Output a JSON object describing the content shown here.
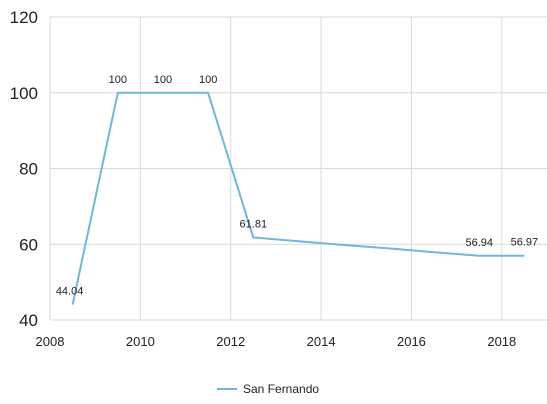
{
  "chart_data": {
    "type": "line",
    "title": "",
    "xlabel": "",
    "ylabel": "",
    "xlim": [
      2008,
      2019
    ],
    "ylim": [
      40,
      120
    ],
    "x_ticks": [
      "2008",
      "2010",
      "2012",
      "2014",
      "2016",
      "2018"
    ],
    "y_ticks": [
      "40",
      "60",
      "80",
      "100",
      "120"
    ],
    "grid": true,
    "legend_position": "bottom",
    "series": [
      {
        "name": "San Fernando",
        "color": "#6fb7dc",
        "points": [
          {
            "x": 2008.5,
            "y": 44.04,
            "label": "44.04"
          },
          {
            "x": 2009.5,
            "y": 100,
            "label": "100"
          },
          {
            "x": 2010.5,
            "y": 100,
            "label": "100"
          },
          {
            "x": 2011.5,
            "y": 100,
            "label": "100"
          },
          {
            "x": 2012.5,
            "y": 61.81,
            "label": "61.81"
          },
          {
            "x": 2017.5,
            "y": 56.94,
            "label": "56.94"
          },
          {
            "x": 2018.5,
            "y": 56.97,
            "label": "56.97"
          }
        ],
        "unlabeled_points": [
          {
            "x": 2013.5,
            "y": 60.8
          },
          {
            "x": 2014.5,
            "y": 59.8
          },
          {
            "x": 2015.5,
            "y": 58.9
          },
          {
            "x": 2016.5,
            "y": 57.9
          }
        ]
      }
    ]
  }
}
